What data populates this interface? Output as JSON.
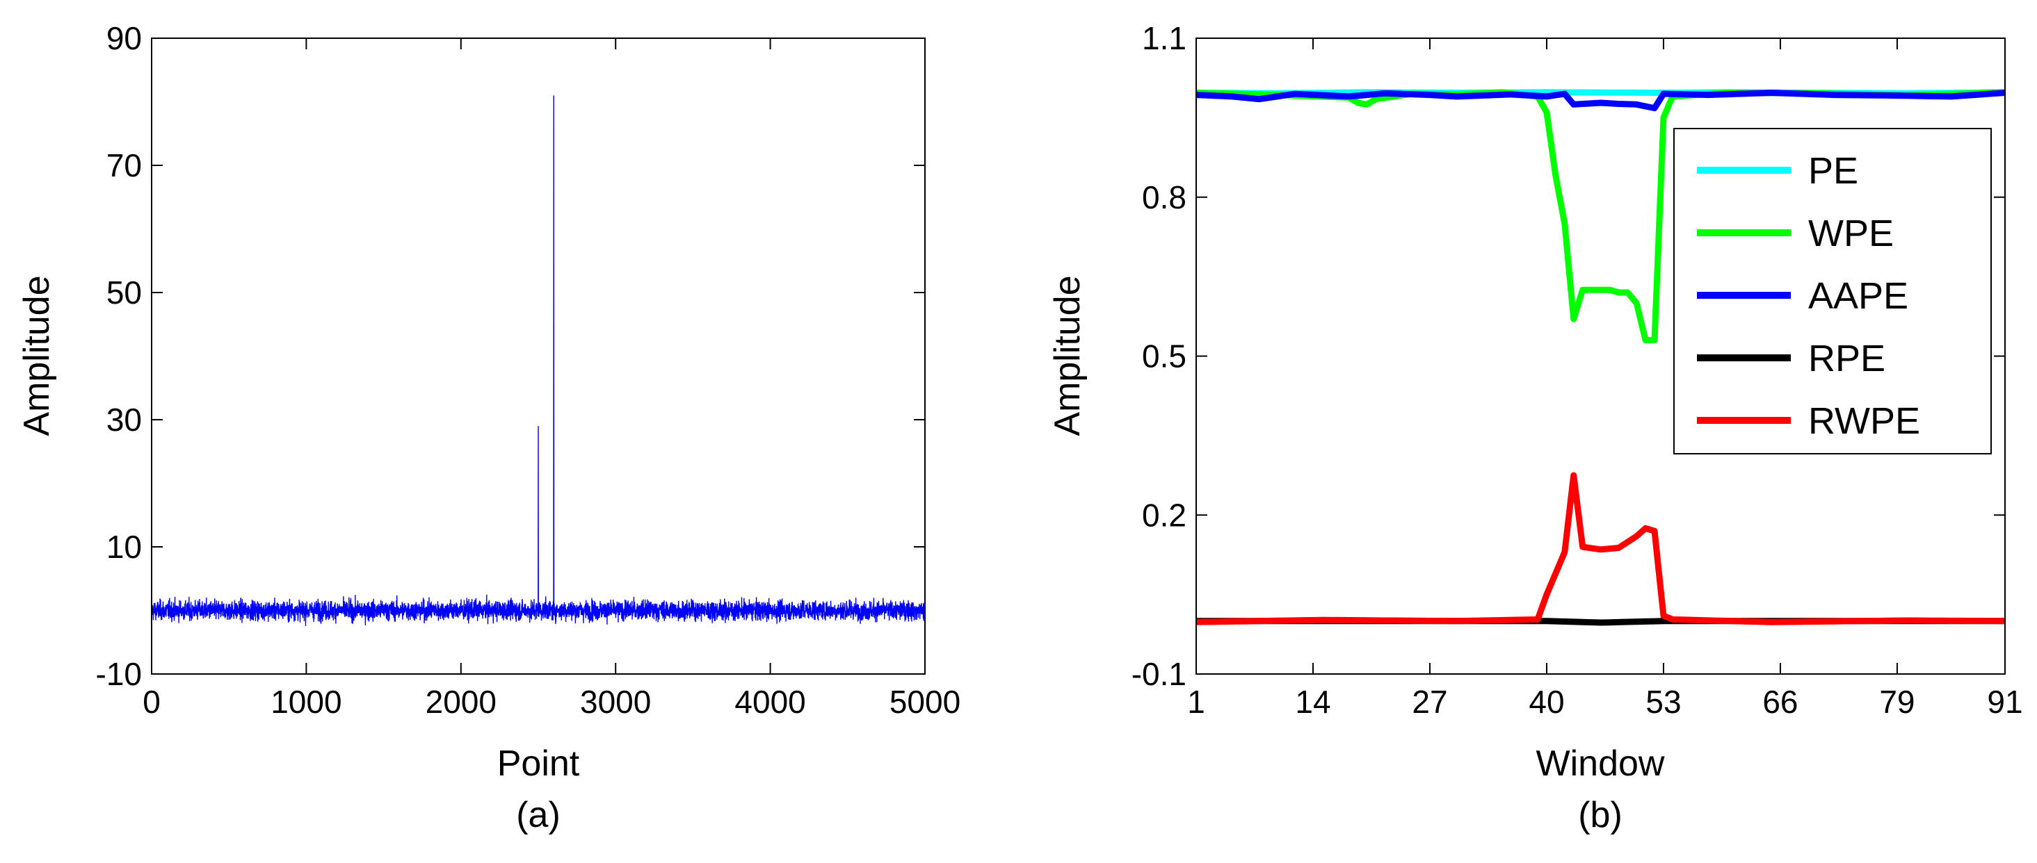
{
  "chart_data": [
    {
      "type": "line",
      "caption": "(a)",
      "xlabel": "Point",
      "ylabel": "Amplitude",
      "xlim": [
        0,
        5000
      ],
      "ylim": [
        -10,
        90
      ],
      "xticks": [
        "0",
        "1000",
        "2000",
        "3000",
        "4000",
        "5000"
      ],
      "yticks": [
        "-10",
        "10",
        "30",
        "50",
        "70",
        "90"
      ],
      "xtick_values": [
        0,
        1000,
        2000,
        3000,
        4000,
        5000
      ],
      "ytick_values": [
        -10,
        10,
        30,
        50,
        70,
        90
      ],
      "series": [
        {
          "color": "#0000ff",
          "description": "noise around 0 (about -2.5 to 3) over points 1-5000 with two impulses",
          "spikes": [
            {
              "x": 2500,
              "y": 29
            },
            {
              "x": 2600,
              "y": 81
            }
          ]
        }
      ],
      "grid": false
    },
    {
      "type": "line",
      "caption": "(b)",
      "xlabel": "Window",
      "ylabel": "Amplitude",
      "xlim": [
        1,
        91
      ],
      "ylim": [
        -0.1,
        1.1
      ],
      "xticks": [
        "1",
        "14",
        "27",
        "40",
        "53",
        "66",
        "79",
        "91"
      ],
      "yticks": [
        "-0.1",
        "0.2",
        "0.5",
        "0.8",
        "1.1"
      ],
      "xtick_values": [
        1,
        14,
        27,
        40,
        53,
        66,
        79,
        91
      ],
      "ytick_values": [
        -0.1,
        0.2,
        0.5,
        0.8,
        1.1
      ],
      "legend_position": "right",
      "series": [
        {
          "name": "PE",
          "color": "#00ffff",
          "points": [
            [
              1,
              0.997
            ],
            [
              10,
              0.996
            ],
            [
              20,
              0.998
            ],
            [
              30,
              0.997
            ],
            [
              40,
              0.998
            ],
            [
              53,
              0.997
            ],
            [
              60,
              0.998
            ],
            [
              70,
              0.997
            ],
            [
              80,
              0.996
            ],
            [
              91,
              0.998
            ]
          ]
        },
        {
          "name": "WPE",
          "color": "#00ff00",
          "points": [
            [
              1,
              0.997
            ],
            [
              10,
              0.993
            ],
            [
              18,
              0.988
            ],
            [
              19,
              0.978
            ],
            [
              20,
              0.975
            ],
            [
              21,
              0.985
            ],
            [
              25,
              0.995
            ],
            [
              30,
              0.994
            ],
            [
              35,
              0.998
            ],
            [
              39,
              0.99
            ],
            [
              40,
              0.96
            ],
            [
              41,
              0.84
            ],
            [
              42,
              0.75
            ],
            [
              43,
              0.57
            ],
            [
              44,
              0.625
            ],
            [
              47,
              0.625
            ],
            [
              48,
              0.62
            ],
            [
              49,
              0.62
            ],
            [
              50,
              0.6
            ],
            [
              51,
              0.53
            ],
            [
              52,
              0.53
            ],
            [
              53,
              0.95
            ],
            [
              54,
              0.99
            ],
            [
              60,
              0.997
            ],
            [
              70,
              0.996
            ],
            [
              80,
              0.992
            ],
            [
              91,
              0.998
            ]
          ]
        },
        {
          "name": "AAPE",
          "color": "#0000ff",
          "points": [
            [
              1,
              0.993
            ],
            [
              5,
              0.99
            ],
            [
              8,
              0.985
            ],
            [
              12,
              0.995
            ],
            [
              18,
              0.99
            ],
            [
              22,
              0.996
            ],
            [
              27,
              0.993
            ],
            [
              30,
              0.99
            ],
            [
              36,
              0.994
            ],
            [
              40,
              0.99
            ],
            [
              42,
              0.995
            ],
            [
              43,
              0.975
            ],
            [
              46,
              0.978
            ],
            [
              48,
              0.976
            ],
            [
              50,
              0.975
            ],
            [
              52,
              0.968
            ],
            [
              53,
              0.995
            ],
            [
              58,
              0.993
            ],
            [
              65,
              0.997
            ],
            [
              72,
              0.993
            ],
            [
              78,
              0.992
            ],
            [
              85,
              0.99
            ],
            [
              91,
              0.997
            ]
          ]
        },
        {
          "name": "RPE",
          "color": "#000000",
          "points": [
            [
              1,
              0.0
            ],
            [
              20,
              0.0
            ],
            [
              40,
              0.0
            ],
            [
              46,
              -0.003
            ],
            [
              53,
              0.0
            ],
            [
              70,
              0.0
            ],
            [
              91,
              0.0
            ]
          ]
        },
        {
          "name": "RWPE",
          "color": "#ff0000",
          "points": [
            [
              1,
              -0.002
            ],
            [
              15,
              0.002
            ],
            [
              30,
              0.0
            ],
            [
              39,
              0.003
            ],
            [
              40,
              0.05
            ],
            [
              41,
              0.09
            ],
            [
              42,
              0.13
            ],
            [
              43,
              0.275
            ],
            [
              44,
              0.14
            ],
            [
              46,
              0.135
            ],
            [
              48,
              0.138
            ],
            [
              50,
              0.16
            ],
            [
              51,
              0.175
            ],
            [
              52,
              0.17
            ],
            [
              53,
              0.01
            ],
            [
              54,
              0.003
            ],
            [
              65,
              -0.002
            ],
            [
              80,
              0.001
            ],
            [
              91,
              0.0
            ]
          ]
        }
      ],
      "grid": false
    }
  ]
}
